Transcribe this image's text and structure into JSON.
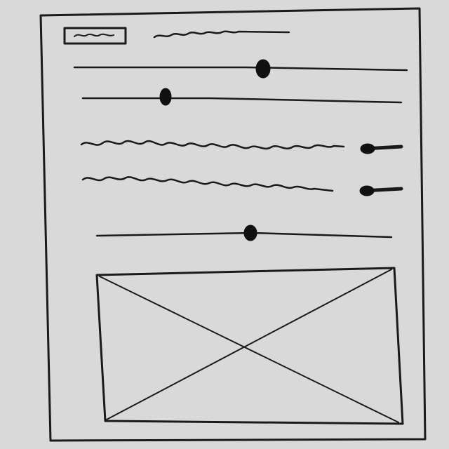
{
  "sketch": {
    "kind": "hand-drawn wireframe",
    "colors": {
      "paper": "#d9d9d9",
      "ink": "#1a1a1a"
    }
  },
  "header": {
    "logo_icon": "scribble-box-icon",
    "title_icon": "squiggle-title-icon"
  },
  "sliders": [
    {
      "id": "slider-1",
      "value_fraction": 0.57
    },
    {
      "id": "slider-2",
      "value_fraction": 0.25
    }
  ],
  "toggle_rows": [
    {
      "id": "toggle-row-1",
      "label_icon": "squiggle-text-icon",
      "state": "on"
    },
    {
      "id": "toggle-row-2",
      "label_icon": "squiggle-text-icon",
      "state": "on"
    }
  ],
  "slider_3": {
    "id": "slider-3",
    "value_fraction": 0.52
  },
  "image_placeholder": {
    "icon": "image-placeholder-icon"
  }
}
